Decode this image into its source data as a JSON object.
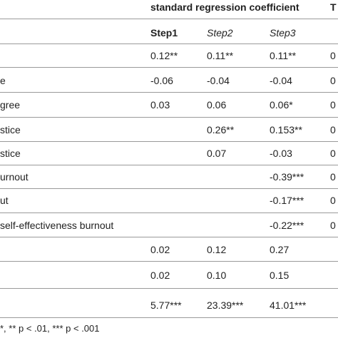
{
  "table": {
    "group_header": "standard regression coefficient",
    "cut_header": "T",
    "step_headers": [
      "Step1",
      "Step2",
      "Step3"
    ],
    "rows": [
      {
        "label": "",
        "step1": "0.12**",
        "step2": "0.11**",
        "step3": "0.11**",
        "cut": "0"
      },
      {
        "label": "e",
        "step1": "-0.06",
        "step2": "-0.04",
        "step3": "-0.04",
        "cut": "0"
      },
      {
        "label": "gree",
        "step1": "0.03",
        "step2": "0.06",
        "step3": "0.06*",
        "cut": "0"
      },
      {
        "label": "stice",
        "step1": "",
        "step2": "0.26**",
        "step3": "0.153**",
        "cut": "0"
      },
      {
        "label": "stice",
        "step1": "",
        "step2": "0.07",
        "step3": "-0.03",
        "cut": "0"
      },
      {
        "label": "urnout",
        "step1": "",
        "step2": "",
        "step3": "-0.39***",
        "cut": "0"
      },
      {
        "label": "ut",
        "step1": "",
        "step2": "",
        "step3": "-0.17***",
        "cut": "0"
      },
      {
        "label": "self-effectiveness burnout",
        "step1": "",
        "step2": "",
        "step3": "-0.22***",
        "cut": "0"
      },
      {
        "label": "",
        "step1": "0.02",
        "step2": "0.12",
        "step3": "0.27",
        "cut": ""
      },
      {
        "label": "",
        "step1": "0.02",
        "step2": "0.10",
        "step3": "0.15",
        "cut": ""
      },
      {
        "label": "",
        "step1": "5.77***",
        "step2": "23.39***",
        "step3": "41.01***",
        "cut": ""
      }
    ],
    "note": "*, ** p < .01, *** p < .001"
  }
}
